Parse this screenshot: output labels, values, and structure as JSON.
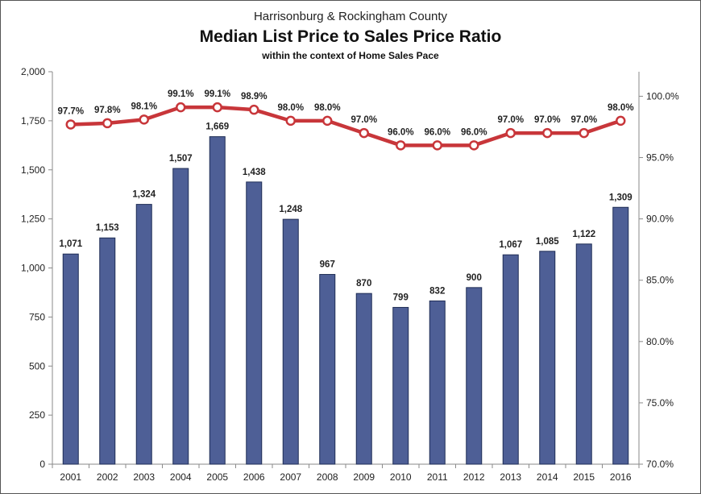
{
  "chart_data": {
    "type": "bar",
    "title": "Harrisonburg & Rockingham County",
    "subtitle": "Median List Price to Sales Price Ratio",
    "subtitle2": "within the context of Home Sales Pace",
    "categories": [
      "2001",
      "2002",
      "2003",
      "2004",
      "2005",
      "2006",
      "2007",
      "2008",
      "2009",
      "2010",
      "2011",
      "2012",
      "2013",
      "2014",
      "2015",
      "2016"
    ],
    "series": [
      {
        "type": "bar",
        "axis": "left",
        "color": "#4e5f96",
        "values": [
          1071,
          1153,
          1324,
          1507,
          1669,
          1438,
          1248,
          967,
          870,
          799,
          832,
          900,
          1067,
          1085,
          1122,
          1309
        ],
        "labels": [
          "1,071",
          "1,153",
          "1,324",
          "1,507",
          "1,669",
          "1,438",
          "1,248",
          "967",
          "870",
          "799",
          "832",
          "900",
          "1,067",
          "1,085",
          "1,122",
          "1,309"
        ]
      },
      {
        "type": "line",
        "axis": "right",
        "color": "#c8363a",
        "values": [
          97.7,
          97.8,
          98.1,
          99.1,
          99.1,
          98.9,
          98.0,
          98.0,
          97.0,
          96.0,
          96.0,
          96.0,
          97.0,
          97.0,
          97.0,
          98.0
        ],
        "labels": [
          "97.7%",
          "97.8%",
          "98.1%",
          "99.1%",
          "99.1%",
          "98.9%",
          "98.0%",
          "98.0%",
          "97.0%",
          "96.0%",
          "96.0%",
          "96.0%",
          "97.0%",
          "97.0%",
          "97.0%",
          "98.0%"
        ]
      }
    ],
    "y_left": {
      "lim": [
        0,
        2000
      ],
      "ticks": [
        0,
        250,
        500,
        750,
        1000,
        1250,
        1500,
        1750,
        2000
      ],
      "tick_labels": [
        "0",
        "250",
        "500",
        "750",
        "1,000",
        "1,250",
        "1,500",
        "1,750",
        "2,000"
      ]
    },
    "y_right": {
      "lim": [
        70,
        102
      ],
      "ticks": [
        70,
        75,
        80,
        85,
        90,
        95,
        100
      ],
      "tick_labels": [
        "70.0%",
        "75.0%",
        "80.0%",
        "85.0%",
        "90.0%",
        "95.0%",
        "100.0%"
      ]
    },
    "grid": false,
    "legend": "none"
  }
}
